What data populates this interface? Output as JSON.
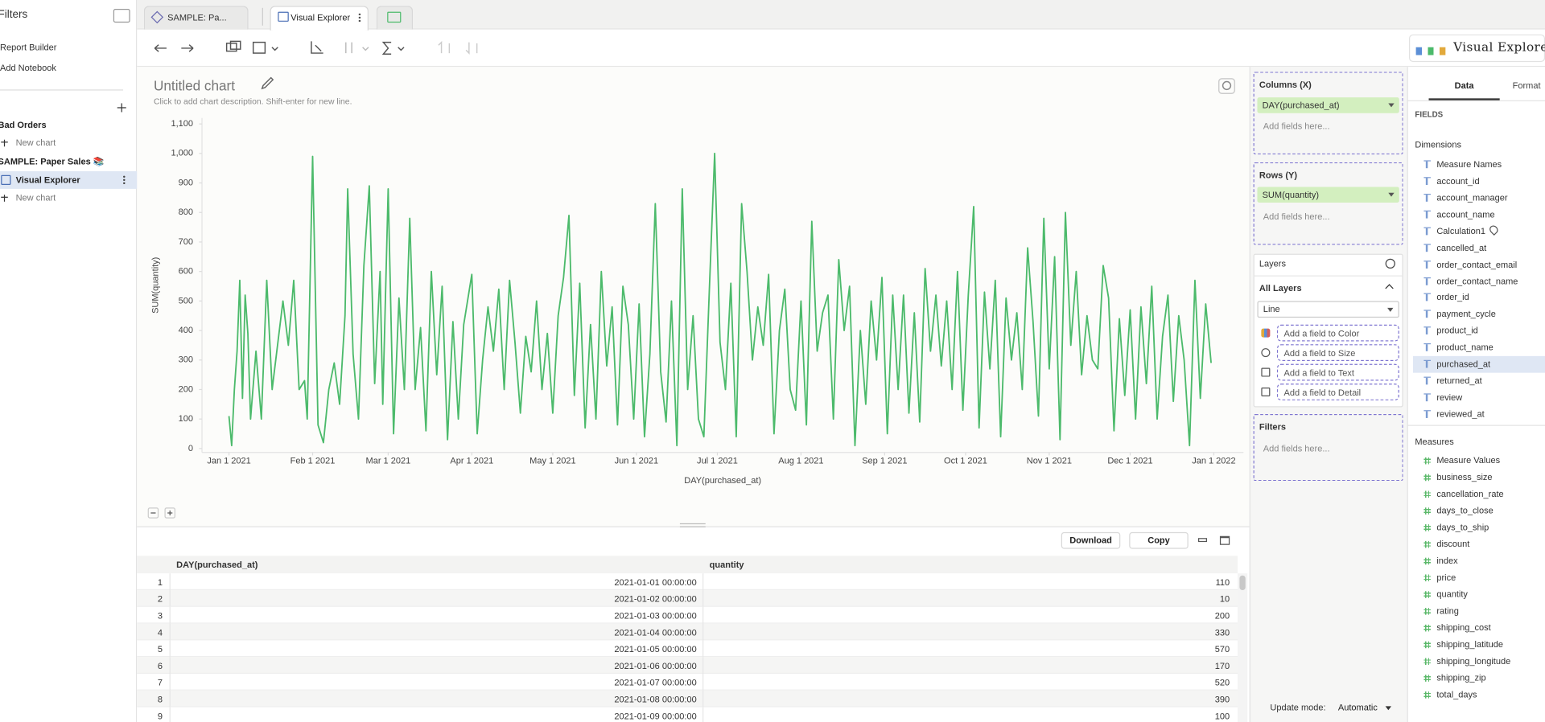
{
  "sidebar": {
    "title": "Filters",
    "links": [
      "Report Builder",
      "Add Notebook"
    ],
    "tree": [
      "Bad Orders",
      "New chart",
      "SAMPLE: Paper Sales 📚",
      "Visual Explorer",
      "New chart"
    ]
  },
  "tabs": [
    "SAMPLE: Pa...",
    "Visual Explorer"
  ],
  "brand": "Visual Explorer",
  "chart_data": {
    "type": "line",
    "title": "Untitled chart",
    "subtitle": "Click to add chart description. Shift-enter for new line.",
    "x_label": "DAY(purchased_at)",
    "y_label": "SUM(quantity)",
    "color": "#4cba6b",
    "grid": false,
    "xlim": [
      "2020-12-22",
      "2022-01-12"
    ],
    "xticks": [
      {
        "value": "2021-01-01",
        "label": "Jan 1 2021"
      },
      {
        "value": "2021-02-01",
        "label": "Feb 1 2021"
      },
      {
        "value": "2021-03-01",
        "label": "Mar 1 2021"
      },
      {
        "value": "2021-04-01",
        "label": "Apr 1 2021"
      },
      {
        "value": "2021-05-01",
        "label": "May 1 2021"
      },
      {
        "value": "2021-06-01",
        "label": "Jun 1 2021"
      },
      {
        "value": "2021-07-01",
        "label": "Jul 1 2021"
      },
      {
        "value": "2021-08-01",
        "label": "Aug 1 2021"
      },
      {
        "value": "2021-09-01",
        "label": "Sep 1 2021"
      },
      {
        "value": "2021-10-01",
        "label": "Oct 1 2021"
      },
      {
        "value": "2021-11-01",
        "label": "Nov 1 2021"
      },
      {
        "value": "2021-12-01",
        "label": "Dec 1 2021"
      },
      {
        "value": "2022-01-01",
        "label": "Jan 1 2022"
      }
    ],
    "ylim": [
      0,
      1100
    ],
    "yticks": [
      0,
      100,
      200,
      300,
      400,
      500,
      600,
      700,
      800,
      900,
      {
        "value": 1000,
        "label": "1,000"
      },
      {
        "value": 1100,
        "label": "1,100"
      }
    ],
    "x": [
      "2021-01-01",
      "2021-01-02",
      "2021-01-03",
      "2021-01-04",
      "2021-01-05",
      "2021-01-06",
      "2021-01-07",
      "2021-01-08",
      "2021-01-09",
      "2021-01-11",
      "2021-01-13",
      "2021-01-15",
      "2021-01-17",
      "2021-01-19",
      "2021-01-21",
      "2021-01-23",
      "2021-01-25",
      "2021-01-27",
      "2021-01-29",
      "2021-01-30",
      "2021-02-01",
      "2021-02-03",
      "2021-02-05",
      "2021-02-07",
      "2021-02-09",
      "2021-02-11",
      "2021-02-13",
      "2021-02-14",
      "2021-02-16",
      "2021-02-18",
      "2021-02-20",
      "2021-02-22",
      "2021-02-24",
      "2021-02-26",
      "2021-02-27",
      "2021-03-01",
      "2021-03-03",
      "2021-03-05",
      "2021-03-07",
      "2021-03-09",
      "2021-03-11",
      "2021-03-13",
      "2021-03-15",
      "2021-03-17",
      "2021-03-19",
      "2021-03-21",
      "2021-03-23",
      "2021-03-25",
      "2021-03-27",
      "2021-03-29",
      "2021-04-01",
      "2021-04-03",
      "2021-04-05",
      "2021-04-07",
      "2021-04-09",
      "2021-04-11",
      "2021-04-13",
      "2021-04-15",
      "2021-04-17",
      "2021-04-19",
      "2021-04-21",
      "2021-04-23",
      "2021-04-25",
      "2021-04-27",
      "2021-04-29",
      "2021-05-01",
      "2021-05-03",
      "2021-05-05",
      "2021-05-07",
      "2021-05-09",
      "2021-05-11",
      "2021-05-13",
      "2021-05-15",
      "2021-05-17",
      "2021-05-19",
      "2021-05-21",
      "2021-05-23",
      "2021-05-25",
      "2021-05-27",
      "2021-05-29",
      "2021-05-31",
      "2021-06-02",
      "2021-06-04",
      "2021-06-06",
      "2021-06-08",
      "2021-06-10",
      "2021-06-12",
      "2021-06-14",
      "2021-06-16",
      "2021-06-18",
      "2021-06-20",
      "2021-06-22",
      "2021-06-24",
      "2021-06-26",
      "2021-06-28",
      "2021-06-30",
      "2021-07-02",
      "2021-07-04",
      "2021-07-06",
      "2021-07-08",
      "2021-07-10",
      "2021-07-12",
      "2021-07-14",
      "2021-07-16",
      "2021-07-18",
      "2021-07-20",
      "2021-07-22",
      "2021-07-24",
      "2021-07-26",
      "2021-07-28",
      "2021-07-30",
      "2021-08-01",
      "2021-08-03",
      "2021-08-05",
      "2021-08-07",
      "2021-08-09",
      "2021-08-11",
      "2021-08-13",
      "2021-08-15",
      "2021-08-17",
      "2021-08-19",
      "2021-08-21",
      "2021-08-23",
      "2021-08-25",
      "2021-08-27",
      "2021-08-29",
      "2021-08-31",
      "2021-09-02",
      "2021-09-04",
      "2021-09-06",
      "2021-09-08",
      "2021-09-10",
      "2021-09-12",
      "2021-09-14",
      "2021-09-16",
      "2021-09-18",
      "2021-09-20",
      "2021-09-22",
      "2021-09-24",
      "2021-09-26",
      "2021-09-28",
      "2021-09-30",
      "2021-10-02",
      "2021-10-04",
      "2021-10-06",
      "2021-10-08",
      "2021-10-10",
      "2021-10-12",
      "2021-10-14",
      "2021-10-16",
      "2021-10-18",
      "2021-10-20",
      "2021-10-22",
      "2021-10-24",
      "2021-10-26",
      "2021-10-28",
      "2021-10-30",
      "2021-11-01",
      "2021-11-03",
      "2021-11-05",
      "2021-11-07",
      "2021-11-09",
      "2021-11-11",
      "2021-11-13",
      "2021-11-15",
      "2021-11-17",
      "2021-11-19",
      "2021-11-21",
      "2021-11-23",
      "2021-11-25",
      "2021-11-27",
      "2021-11-29",
      "2021-12-01",
      "2021-12-03",
      "2021-12-05",
      "2021-12-07",
      "2021-12-09",
      "2021-12-11",
      "2021-12-13",
      "2021-12-15",
      "2021-12-17",
      "2021-12-19",
      "2021-12-21",
      "2021-12-23",
      "2021-12-25",
      "2021-12-27",
      "2021-12-29",
      "2021-12-31"
    ],
    "values": [
      110,
      10,
      200,
      330,
      570,
      170,
      520,
      390,
      100,
      330,
      100,
      570,
      200,
      350,
      500,
      350,
      570,
      200,
      230,
      100,
      990,
      80,
      20,
      200,
      290,
      150,
      450,
      880,
      320,
      100,
      620,
      890,
      220,
      600,
      150,
      880,
      50,
      510,
      200,
      780,
      200,
      410,
      60,
      600,
      250,
      550,
      30,
      430,
      100,
      420,
      590,
      50,
      300,
      480,
      330,
      540,
      200,
      570,
      360,
      120,
      380,
      260,
      500,
      200,
      390,
      120,
      450,
      580,
      790,
      180,
      560,
      70,
      420,
      100,
      600,
      280,
      480,
      80,
      550,
      420,
      100,
      490,
      40,
      320,
      830,
      260,
      90,
      500,
      10,
      880,
      200,
      450,
      100,
      40,
      530,
      1000,
      360,
      200,
      560,
      40,
      830,
      600,
      300,
      480,
      350,
      590,
      50,
      400,
      540,
      200,
      130,
      500,
      80,
      770,
      330,
      460,
      520,
      100,
      640,
      400,
      550,
      10,
      400,
      150,
      500,
      300,
      580,
      50,
      520,
      200,
      520,
      120,
      460,
      90,
      610,
      330,
      520,
      280,
      500,
      200,
      600,
      130,
      520,
      820,
      70,
      530,
      270,
      570,
      40,
      510,
      300,
      460,
      200,
      680,
      430,
      110,
      780,
      270,
      650,
      30,
      800,
      350,
      600,
      250,
      450,
      300,
      270,
      620,
      510,
      60,
      440,
      180,
      470,
      100,
      480,
      220,
      550,
      100,
      380,
      520,
      160,
      450,
      300,
      10,
      570,
      170,
      490,
      290
    ]
  },
  "table": {
    "buttons": [
      "Download",
      "Copy"
    ],
    "columns": [
      "DAY(purchased_at)",
      "quantity"
    ],
    "rows": [
      [
        1,
        "2021-01-01 00:00:00",
        110
      ],
      [
        2,
        "2021-01-02 00:00:00",
        10
      ],
      [
        3,
        "2021-01-03 00:00:00",
        200
      ],
      [
        4,
        "2021-01-04 00:00:00",
        330
      ],
      [
        5,
        "2021-01-05 00:00:00",
        570
      ],
      [
        6,
        "2021-01-06 00:00:00",
        170
      ],
      [
        7,
        "2021-01-07 00:00:00",
        520
      ],
      [
        8,
        "2021-01-08 00:00:00",
        390
      ],
      [
        9,
        "2021-01-09 00:00:00",
        100
      ]
    ]
  },
  "shelves": {
    "columns": {
      "title": "Columns (X)",
      "pill": "DAY(purchased_at)",
      "placeholder": "Add fields here..."
    },
    "rows": {
      "title": "Rows (Y)",
      "pill": "SUM(quantity)",
      "placeholder": "Add fields here..."
    },
    "layers": {
      "title": "Layers",
      "group": "All Layers",
      "mark_type": "Line",
      "encodings": [
        "Add a field to Color",
        "Add a field to Size",
        "Add a field to Text",
        "Add a field to Detail"
      ]
    },
    "filters": {
      "title": "Filters",
      "placeholder": "Add fields here..."
    },
    "update_mode": {
      "label": "Update mode:",
      "value": "Automatic"
    }
  },
  "fields_panel": {
    "tabs": [
      "Data",
      "Format"
    ],
    "heading": "FIELDS",
    "dimensions_title": "Dimensions",
    "dimensions": [
      "Measure Names",
      "account_id",
      "account_manager",
      "account_name",
      "Calculation1",
      "cancelled_at",
      "order_contact_email",
      "order_contact_name",
      "order_id",
      "payment_cycle",
      "product_id",
      "product_name",
      "purchased_at",
      "returned_at",
      "review",
      "reviewed_at"
    ],
    "measures_title": "Measures",
    "measures": [
      "Measure Values",
      "business_size",
      "cancellation_rate",
      "days_to_close",
      "days_to_ship",
      "discount",
      "index",
      "price",
      "quantity",
      "rating",
      "shipping_cost",
      "shipping_latitude",
      "shipping_longitude",
      "shipping_zip",
      "total_days"
    ]
  }
}
